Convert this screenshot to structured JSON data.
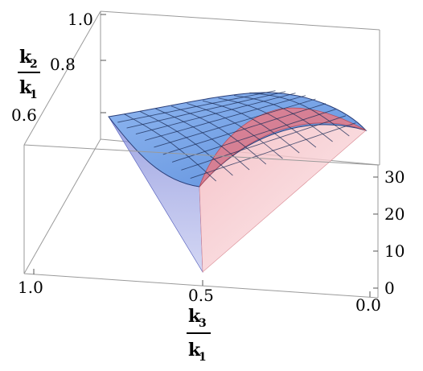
{
  "chart_data": {
    "type": "surface3d",
    "x_axis": {
      "numerator": "k",
      "numerator_sub": "3",
      "denominator": "k",
      "denominator_sub": "1",
      "range": [
        0.0,
        1.0
      ],
      "ticks": [
        "1.0",
        "0.5",
        "0.0"
      ]
    },
    "y_axis": {
      "numerator": "k",
      "numerator_sub": "2",
      "denominator": "k",
      "denominator_sub": "1",
      "range": [
        0.5,
        1.0
      ],
      "ticks": [
        "1.0",
        "0.8",
        "0.6"
      ]
    },
    "z_axis": {
      "range": [
        0,
        30
      ],
      "ticks": [
        "30",
        "20",
        "10",
        "0"
      ]
    },
    "domain": "triangle 1 - x3 <= x2 <= 1, 0 <= x3 <= 1",
    "surfaces": [
      {
        "color": "#6f9de6",
        "mesh": true,
        "peak_z": 30
      },
      {
        "color": "#e87a86",
        "mesh": false,
        "peak_z": 30
      }
    ]
  }
}
